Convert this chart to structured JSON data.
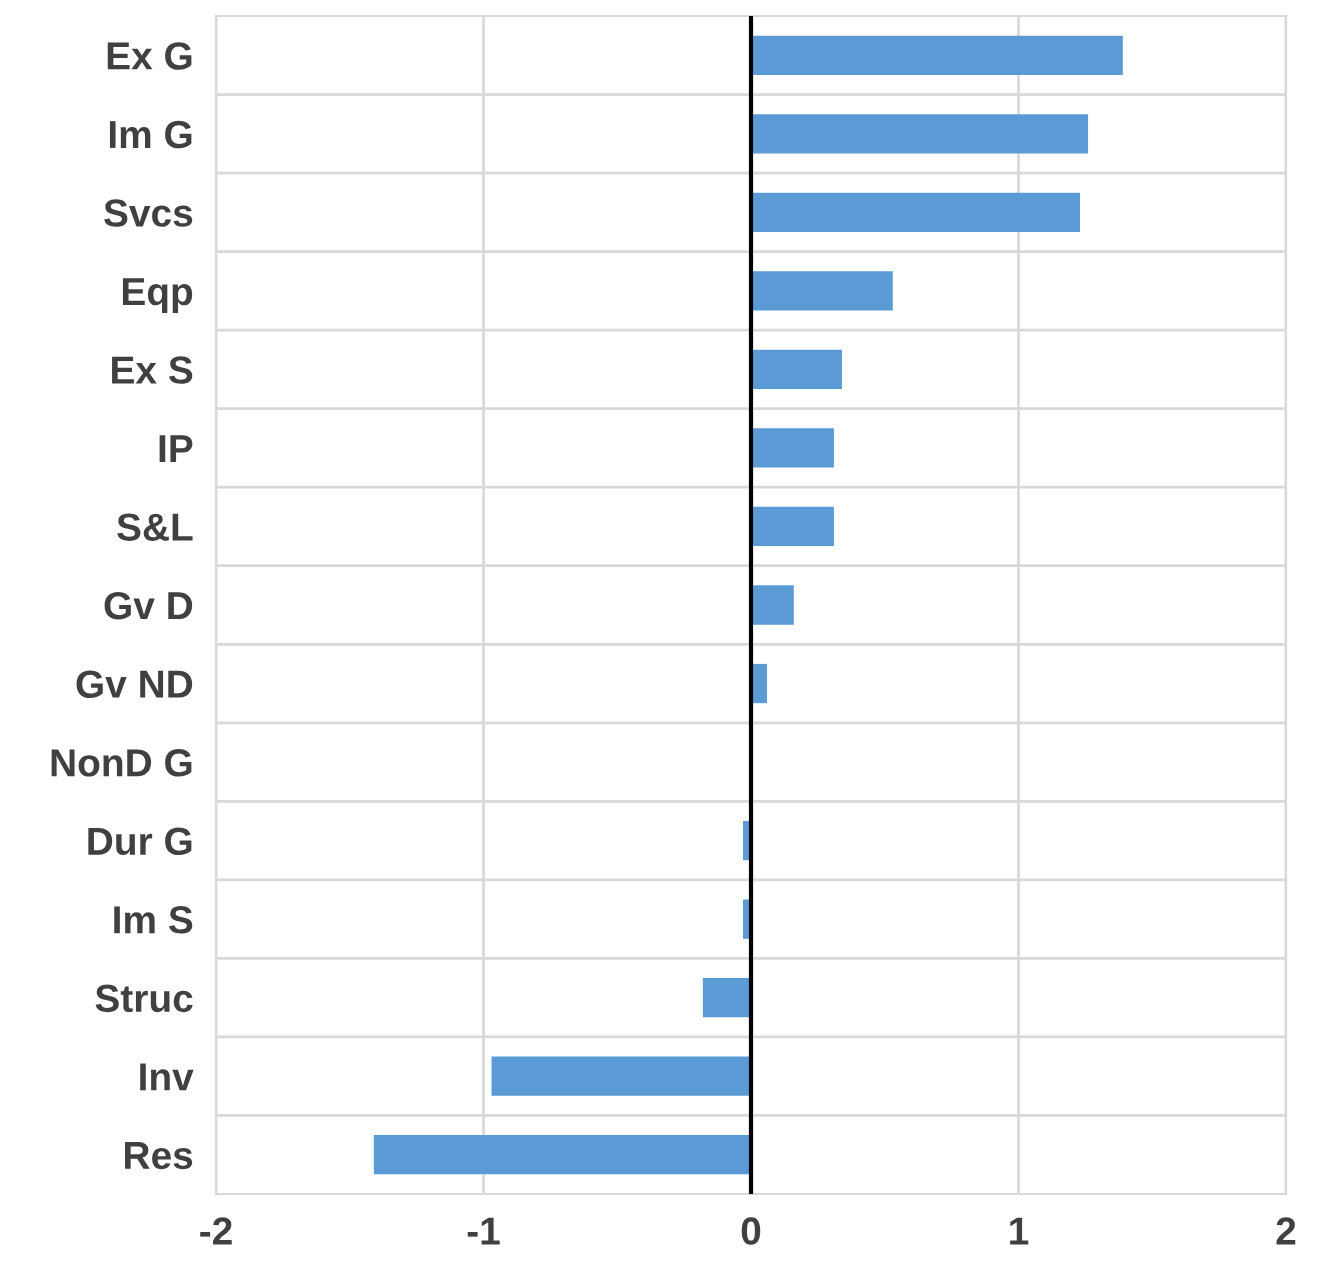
{
  "chart_data": {
    "type": "bar",
    "orientation": "horizontal",
    "categories": [
      "Ex G",
      "Im G",
      "Svcs",
      "Eqp",
      "Ex S",
      "IP",
      "S&L",
      "Gv D",
      "Gv ND",
      "NonD G",
      "Dur G",
      "Im S",
      "Struc",
      "Inv",
      "Res"
    ],
    "values": [
      1.39,
      1.26,
      1.23,
      0.53,
      0.34,
      0.31,
      0.31,
      0.16,
      0.06,
      0,
      -0.03,
      -0.03,
      -0.18,
      -0.97,
      -1.41
    ],
    "color": "#5b9bd5",
    "xlim": [
      -2,
      2
    ],
    "xticks": [
      -2,
      -1,
      0,
      1,
      2
    ],
    "grid": true,
    "ref_lines": [
      {
        "axis": "x",
        "value": 0,
        "color": "#000000"
      }
    ]
  }
}
